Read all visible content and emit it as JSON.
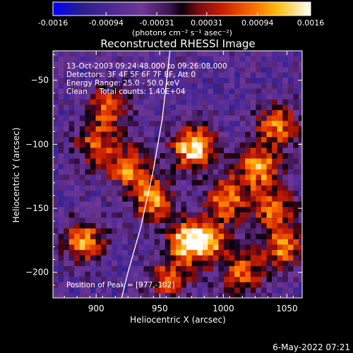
{
  "chart_data": {
    "type": "heatmap",
    "title": "Reconstructed RHESSI Image",
    "xlabel": "Heliocentric X (arcsec)",
    "ylabel": "Heliocentric Y (arcsec)",
    "xlim": [
      866,
      1062
    ],
    "ylim": [
      -220,
      -27
    ],
    "x_ticks": [
      900,
      950,
      1000,
      1050
    ],
    "y_ticks": [
      -50,
      -100,
      -150,
      -200
    ],
    "colorbar": {
      "range": [
        -0.0016,
        0.0016
      ],
      "ticks": [
        "-0.0016",
        "-0.00094",
        "-0.00031",
        "0.00031",
        "0.00094",
        "0.0016"
      ],
      "tick_values": [
        -0.0016,
        -0.00094,
        -0.00031,
        0.00031,
        0.00094,
        0.0016
      ],
      "unit_label": "(photons cm⁻² s⁻¹ asec⁻²)",
      "colors": [
        "#0000ff",
        "#2a1a88",
        "#5a2a8a",
        "#000000",
        "#7a0000",
        "#ff2000",
        "#ff9a00",
        "#ffffff"
      ]
    },
    "annotations": [
      "13-Oct-2003 09:24:48.000 to 09:26:08.000",
      "Detectors: 3F 4F 5F 6F 7F 8F, Att 0",
      "Energy Range: 25.0 - 50.0 keV",
      "Clean     Total counts: 1.40E+04"
    ],
    "peak_label": "Position of Peak = [977,-102]",
    "peak": [
      977,
      -102
    ],
    "limb_curve": [
      [
        958,
        -27
      ],
      [
        952,
        -80
      ],
      [
        945,
        -120
      ],
      [
        935,
        -165
      ],
      [
        925,
        -200
      ],
      [
        920,
        -220
      ]
    ],
    "hot_spots": [
      {
        "x": 977,
        "y": -102,
        "v": 0.0016
      },
      {
        "x": 972,
        "y": -175,
        "v": 0.0012
      },
      {
        "x": 1028,
        "y": -117,
        "v": 0.0011
      },
      {
        "x": 1003,
        "y": -142,
        "v": 0.0009
      },
      {
        "x": 945,
        "y": -143,
        "v": 0.001
      },
      {
        "x": 925,
        "y": -118,
        "v": 0.0008
      },
      {
        "x": 890,
        "y": -175,
        "v": 0.001
      },
      {
        "x": 1043,
        "y": -85,
        "v": 0.0008
      },
      {
        "x": 910,
        "y": -70,
        "v": 0.0007
      },
      {
        "x": 1047,
        "y": -182,
        "v": 0.0008
      },
      {
        "x": 1015,
        "y": -200,
        "v": 0.0007
      },
      {
        "x": 900,
        "y": -100,
        "v": 0.0006
      },
      {
        "x": 990,
        "y": -175,
        "v": 0.0007
      },
      {
        "x": 1040,
        "y": -150,
        "v": 0.0007
      },
      {
        "x": 958,
        "y": -205,
        "v": 0.0006
      }
    ]
  },
  "footer": {
    "date": "6-May-2022 07:21"
  }
}
